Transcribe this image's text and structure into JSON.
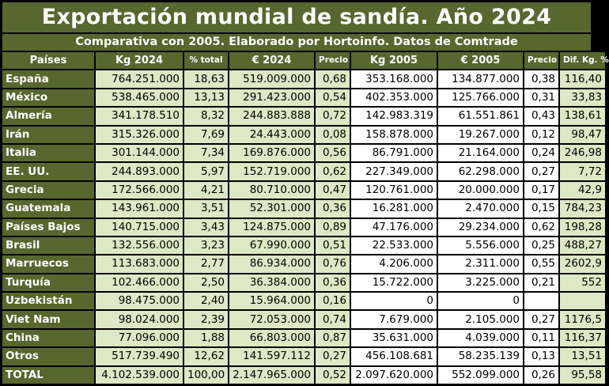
{
  "title": "Exportación mundial de sandía. Año 2024",
  "subtitle": "Comparativa con 2005. Elaborado por Hortoinfo. Datos de Comtrade",
  "headers": [
    "Países",
    "Kg 2024",
    "% total",
    "€ 2024",
    "Precio",
    "Kg 2005",
    "€ 2005",
    "Precio",
    "Dif. Kg. %"
  ],
  "rows": [
    [
      "España",
      "764.251.000",
      "18,63",
      "519.009.000",
      "0,68",
      "353.168.000",
      "134.877.000",
      "0,38",
      "116,40"
    ],
    [
      "México",
      "538.465.000",
      "13,13",
      "291.423.000",
      "0,54",
      "402.353.000",
      "125.766.000",
      "0,31",
      "33,83"
    ],
    [
      "Almería",
      "341.178.510",
      "8,32",
      "244.883.888",
      "0,72",
      "142.983.319",
      "61.551.861",
      "0,43",
      "138,61"
    ],
    [
      "Irán",
      "315.326.000",
      "7,69",
      "24.443.000",
      "0,08",
      "158.878.000",
      "19.267.000",
      "0,12",
      "98,47"
    ],
    [
      "Italia",
      "301.144.000",
      "7,34",
      "169.876.000",
      "0,56",
      "86.791.000",
      "21.164.000",
      "0,24",
      "246,98"
    ],
    [
      "EE. UU.",
      "244.893.000",
      "5,97",
      "152.719.000",
      "0,62",
      "227.349.000",
      "62.298.000",
      "0,27",
      "7,72"
    ],
    [
      "Grecia",
      "172.566.000",
      "4,21",
      "80.710.000",
      "0,47",
      "120.761.000",
      "20.000.000",
      "0,17",
      "42,9"
    ],
    [
      "Guatemala",
      "143.961.000",
      "3,51",
      "52.301.000",
      "0,36",
      "16.281.000",
      "2.470.000",
      "0,15",
      "784,23"
    ],
    [
      "Países Bajos",
      "140.715.000",
      "3,43",
      "124.875.000",
      "0,89",
      "47.176.000",
      "29.234.000",
      "0,62",
      "198,28"
    ],
    [
      "Brasil",
      "132.556.000",
      "3,23",
      "67.990.000",
      "0,51",
      "22.533.000",
      "5.556.000",
      "0,25",
      "488,27"
    ],
    [
      "Marruecos",
      "113.683.000",
      "2,77",
      "86.934.000",
      "0,76",
      "4.206.000",
      "2.311.000",
      "0,55",
      "2602,9"
    ],
    [
      "Turquía",
      "102.466.000",
      "2,50",
      "36.384.000",
      "0,36",
      "15.722.000",
      "3.225.000",
      "0,21",
      "552"
    ],
    [
      "Uzbekistán",
      "98.475.000",
      "2,40",
      "15.964.000",
      "0,16",
      "0",
      "0",
      "",
      ""
    ],
    [
      "Viet Nam",
      "98.024.000",
      "2,39",
      "72.053.000",
      "0,74",
      "7.679.000",
      "2.105.000",
      "0,27",
      "1176,5"
    ],
    [
      "China",
      "77.096.000",
      "1,88",
      "66.803.000",
      "0,87",
      "35.631.000",
      "4.039.000",
      "0,11",
      "116,37"
    ],
    [
      "Otros",
      "517.739.490",
      "12,62",
      "141.597.112",
      "0,27",
      "456.108.681",
      "58.235.139",
      "0,13",
      "13,51"
    ],
    [
      "TOTAL",
      "4.102.539.000",
      "100,00",
      "2.147.965.000",
      "0,52",
      "2.097.620.000",
      "552.099.000",
      "0,26",
      "95,58"
    ]
  ],
  "colors": {
    "header_bg": "#56682e",
    "light_green": "#dbe9c4",
    "white": "#ffffff",
    "grid_lines": "#000000"
  }
}
